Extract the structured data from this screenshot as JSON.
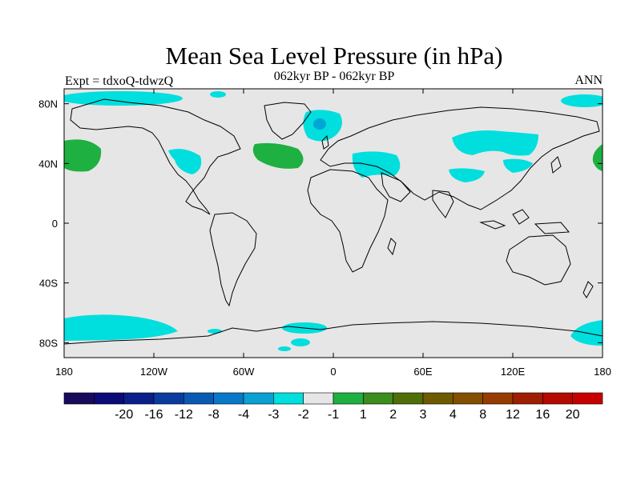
{
  "title": "Mean Sea Level Pressure (in hPa)",
  "subtitle": "062kyr BP - 062kyr BP",
  "left_label": "Expt = tdxoQ-tdwzQ",
  "right_label": "ANN",
  "colors": {
    "background_land_ocean": "#e6e6e6",
    "coastline": "#000000",
    "anomaly_neg_small": "#00dede",
    "anomaly_neg_medium": "#00a6d6",
    "anomaly_neg_strong": "#0072c6",
    "anomaly_pos_small": "#1eb040"
  },
  "map": {
    "projection": "cylindrical-equidistant",
    "lon_range": [
      -180,
      180
    ],
    "lat_range": [
      -90,
      90
    ],
    "lon_ticks": [
      {
        "lon": -180,
        "label": "180"
      },
      {
        "lon": -120,
        "label": "120W"
      },
      {
        "lon": -60,
        "label": "60W"
      },
      {
        "lon": 0,
        "label": "0"
      },
      {
        "lon": 60,
        "label": "60E"
      },
      {
        "lon": 120,
        "label": "120E"
      },
      {
        "lon": 180,
        "label": "180"
      }
    ],
    "lat_ticks": [
      {
        "lat": 80,
        "label": "80N"
      },
      {
        "lat": 40,
        "label": "40N"
      },
      {
        "lat": 0,
        "label": "0"
      },
      {
        "lat": -40,
        "label": "40S"
      },
      {
        "lat": -80,
        "label": "80S"
      }
    ]
  },
  "colorbar": {
    "colors": [
      "#1a0a5a",
      "#0a0a78",
      "#0a1e8c",
      "#0a3ca0",
      "#0a5ab4",
      "#0a78c8",
      "#0aa0d2",
      "#00dede",
      "#e6e6e6",
      "#1eb040",
      "#3c8c1e",
      "#506e0a",
      "#6e5a00",
      "#825000",
      "#963c00",
      "#a01e00",
      "#b40a00",
      "#c80000"
    ],
    "labels": [
      "-20",
      "-16",
      "-12",
      "-8",
      "-4",
      "-3",
      "-2",
      "-1",
      "1",
      "2",
      "3",
      "4",
      "8",
      "12",
      "16",
      "20"
    ]
  }
}
